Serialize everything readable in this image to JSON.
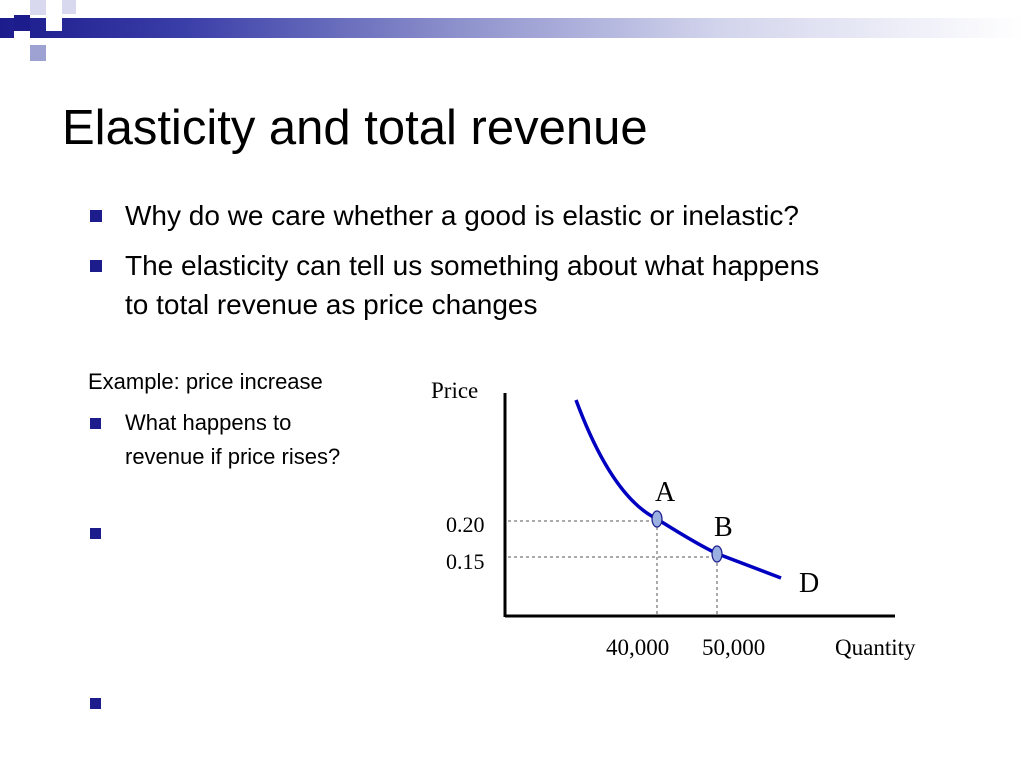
{
  "slide": {
    "title": "Elasticity and total revenue",
    "bullets": [
      "Why do we care whether a good is elastic or inelastic?",
      "The elasticity can tell us something about what happens to total revenue as price changes"
    ],
    "example_label": "Example: price increase",
    "sub_bullets": [
      "What happens to revenue if price rises?",
      "",
      ""
    ]
  },
  "diagram": {
    "y_axis_label": "Price",
    "x_axis_label": "Quantity",
    "curve_label": "D",
    "points": [
      {
        "label": "A",
        "price": "0.20",
        "quantity": "40,000"
      },
      {
        "label": "B",
        "price": "0.15",
        "quantity": "50,000"
      }
    ]
  },
  "colors": {
    "accent": "#1c1c8c",
    "curve": "#0000c0",
    "point_fill": "#9ab0e0"
  }
}
